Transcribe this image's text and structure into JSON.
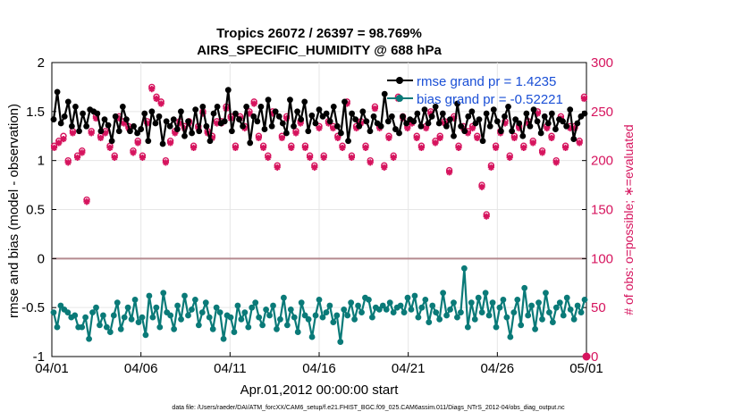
{
  "chart_data": {
    "type": "line",
    "title_line1": "Tropics 26072 / 26397 = 98.769%",
    "title_line2": "AIRS_SPECIFIC_HUMIDITY @ 688 hPa",
    "xlabel": "Apr.01,2012 00:00:00 start",
    "ylabel_left": "rmse and bias (model - observation)",
    "ylabel_right": "# of obs: o=possible; ∗=evaluated",
    "footnote": "data file: /Users/raeder/DAI/ATM_forcXX/CAM6_setup/f.e21.FHIST_BGC.f09_025.CAM6assim.011/Diags_NTrS_2012-04/obs_diag_output.nc",
    "x_ticks": [
      "04/01",
      "04/06",
      "04/11",
      "04/16",
      "04/21",
      "04/26",
      "05/01"
    ],
    "x_range_days": [
      0,
      30
    ],
    "left_ylim": [
      -1,
      2
    ],
    "left_ticks": [
      "-1",
      "-0.5",
      "0",
      "0.5",
      "1",
      "1.5",
      "2"
    ],
    "right_ylim": [
      0,
      300
    ],
    "right_ticks": [
      "0",
      "50",
      "100",
      "150",
      "200",
      "250",
      "300"
    ],
    "legend": [
      {
        "name": "rmse grand pr = 1.4235",
        "color": "#000000"
      },
      {
        "name": "bias grand pr = -0.52221",
        "color": "#0a7a78"
      }
    ],
    "series": [
      {
        "name": "rmse",
        "color": "#000000",
        "values": [
          1.42,
          1.7,
          1.38,
          1.45,
          1.6,
          1.35,
          1.55,
          1.3,
          1.48,
          1.35,
          1.52,
          1.5,
          1.48,
          1.3,
          1.42,
          1.36,
          1.2,
          1.45,
          1.3,
          1.55,
          1.42,
          1.3,
          1.35,
          1.28,
          1.32,
          1.48,
          1.2,
          1.5,
          1.38,
          1.45,
          1.17,
          1.4,
          1.35,
          1.42,
          1.32,
          1.5,
          1.25,
          1.4,
          1.28,
          1.52,
          1.3,
          1.55,
          1.35,
          1.2,
          1.48,
          1.55,
          1.38,
          1.4,
          1.72,
          1.3,
          1.48,
          1.42,
          1.35,
          1.55,
          1.18,
          1.45,
          1.4,
          1.55,
          1.32,
          1.62,
          1.35,
          1.5,
          1.45,
          1.38,
          1.28,
          1.62,
          1.35,
          1.5,
          1.42,
          1.6,
          1.3,
          1.46,
          1.38,
          1.52,
          1.45,
          1.48,
          1.4,
          1.55,
          1.35,
          1.28,
          1.6,
          1.2,
          1.48,
          1.42,
          1.35,
          1.5,
          1.4,
          1.3,
          1.45,
          1.38,
          1.35,
          1.68,
          1.4,
          1.45,
          1.32,
          1.28,
          1.45,
          1.38,
          1.42,
          1.4,
          1.48,
          1.35,
          1.52,
          1.38,
          1.45,
          1.55,
          1.38,
          1.48,
          1.35,
          1.42,
          1.25,
          1.58,
          1.35,
          1.3,
          1.45,
          1.5,
          1.38,
          1.42,
          1.2,
          1.48,
          1.35,
          1.52,
          1.4,
          1.3,
          1.45,
          1.55,
          1.3,
          1.42,
          1.38,
          1.25,
          1.48,
          1.35,
          1.52,
          1.4,
          1.28,
          1.45,
          1.38,
          1.48,
          1.32,
          1.42,
          1.4,
          1.35,
          1.52,
          1.22,
          1.38,
          1.45,
          1.48
        ]
      },
      {
        "name": "bias",
        "color": "#0a7a78",
        "values": [
          -0.55,
          -0.7,
          -0.48,
          -0.52,
          -0.55,
          -0.6,
          -0.58,
          -0.7,
          -0.7,
          -0.6,
          -0.82,
          -0.55,
          -0.5,
          -0.68,
          -0.58,
          -0.7,
          -0.75,
          -0.58,
          -0.45,
          -0.72,
          -0.6,
          -0.5,
          -0.62,
          -0.42,
          -0.65,
          -0.6,
          -0.78,
          -0.38,
          -0.6,
          -0.5,
          -0.7,
          -0.35,
          -0.55,
          -0.58,
          -0.72,
          -0.48,
          -0.62,
          -0.38,
          -0.58,
          -0.52,
          -0.42,
          -0.68,
          -0.55,
          -0.45,
          -0.6,
          -0.72,
          -0.5,
          -0.55,
          -0.82,
          -0.58,
          -0.6,
          -0.75,
          -0.48,
          -0.62,
          -0.55,
          -0.7,
          -0.5,
          -0.45,
          -0.6,
          -0.68,
          -0.52,
          -0.58,
          -0.48,
          -0.72,
          -0.62,
          -0.4,
          -0.68,
          -0.52,
          -0.6,
          -0.75,
          -0.45,
          -0.58,
          -0.62,
          -0.8,
          -0.58,
          -0.42,
          -0.6,
          -0.55,
          -0.48,
          -0.65,
          -0.58,
          -0.85,
          -0.52,
          -0.58,
          -0.45,
          -0.62,
          -0.48,
          -0.55,
          -0.4,
          -0.42,
          -0.6,
          -0.5,
          -0.52,
          -0.48,
          -0.52,
          -0.45,
          -0.55,
          -0.5,
          -0.48,
          -0.55,
          -0.4,
          -0.52,
          -0.38,
          -0.6,
          -0.5,
          -0.42,
          -0.65,
          -0.48,
          -0.55,
          -0.62,
          -0.35,
          -0.58,
          -0.52,
          -0.45,
          -0.6,
          -0.55,
          -0.1,
          -0.7,
          -0.45,
          -0.62,
          -0.4,
          -0.55,
          -0.35,
          -0.58,
          -0.45,
          -0.7,
          -0.5,
          -0.42,
          -0.6,
          -0.8,
          -0.55,
          -0.42,
          -0.68,
          -0.3,
          -0.58,
          -0.48,
          -0.72,
          -0.45,
          -0.62,
          -0.35,
          -0.55,
          -0.65,
          -0.5,
          -0.45,
          -0.58,
          -0.4,
          -0.52,
          -0.62,
          -0.48,
          -0.55,
          -0.42
        ]
      },
      {
        "name": "obs possible",
        "values": [
          215,
          220,
          225,
          200,
          230,
          205,
          210,
          160,
          230,
          245,
          225,
          230,
          215,
          205,
          245,
          240,
          235,
          210,
          220,
          205,
          240,
          275,
          265,
          260,
          200,
          220,
          230,
          240,
          235,
          240,
          215,
          235,
          250,
          230,
          225,
          240,
          240,
          255,
          245,
          215,
          245,
          235,
          250,
          260,
          225,
          215,
          205,
          250,
          195,
          225,
          245,
          215,
          230,
          240,
          215,
          205,
          195,
          235,
          205,
          240,
          235,
          225,
          215,
          260,
          205,
          235,
          240,
          215,
          200,
          255,
          235,
          195,
          225,
          205,
          265,
          245,
          235,
          240,
          225,
          215,
          235,
          250,
          220,
          225,
          240,
          190,
          245,
          215,
          235,
          230,
          235,
          225,
          175,
          145,
          195,
          215,
          230,
          240,
          205,
          225,
          235,
          215,
          240,
          220,
          250,
          210,
          235,
          225,
          200,
          245,
          215,
          235,
          235,
          220,
          265
        ]
      },
      {
        "name": "obs evaluated",
        "values": [
          213,
          218,
          222,
          198,
          228,
          203,
          208,
          158,
          228,
          243,
          223,
          228,
          213,
          203,
          243,
          238,
          233,
          208,
          218,
          203,
          238,
          273,
          263,
          258,
          198,
          218,
          228,
          238,
          233,
          238,
          213,
          233,
          248,
          228,
          223,
          238,
          238,
          253,
          243,
          213,
          243,
          233,
          248,
          258,
          223,
          213,
          203,
          248,
          193,
          223,
          243,
          213,
          228,
          238,
          213,
          203,
          193,
          233,
          203,
          238,
          233,
          223,
          213,
          258,
          203,
          233,
          238,
          213,
          198,
          253,
          233,
          193,
          223,
          203,
          263,
          243,
          233,
          238,
          223,
          213,
          233,
          248,
          218,
          223,
          238,
          188,
          243,
          213,
          233,
          228,
          233,
          223,
          173,
          143,
          193,
          213,
          228,
          238,
          203,
          223,
          233,
          213,
          238,
          218,
          248,
          208,
          233,
          223,
          198,
          243,
          213,
          233,
          233,
          218,
          263
        ]
      }
    ]
  }
}
